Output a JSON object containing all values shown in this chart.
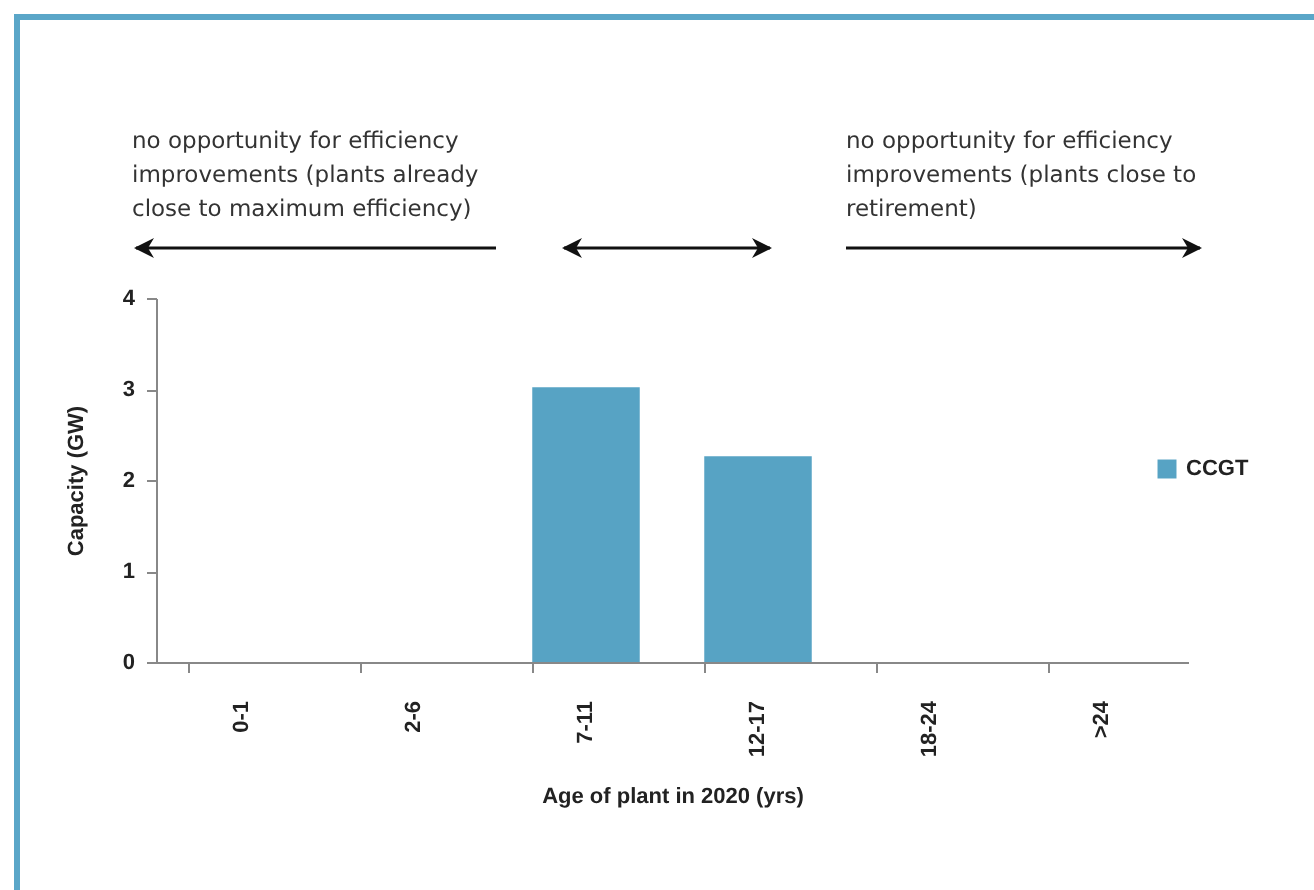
{
  "chart_data": {
    "type": "bar",
    "xlabel": "Age of plant in 2020 (yrs)",
    "ylabel": "Capacity (GW)",
    "categories": [
      "0-1",
      "2-6",
      "7-11",
      "12-17",
      "18-24",
      ">24"
    ],
    "series": [
      {
        "name": "CCGT",
        "color": "#57a3c4",
        "values": [
          0,
          0,
          3.02,
          2.26,
          0,
          0
        ]
      }
    ],
    "ylim": [
      0,
      4
    ],
    "yticks": [
      0,
      1,
      2,
      3,
      4
    ],
    "grid": false,
    "legend": "right",
    "annotations": [
      "no opportunity for efficiency improvements (plants already close to maximum efficiency)",
      "no opportunity for efficiency improvements (plants close to retirement)"
    ]
  }
}
